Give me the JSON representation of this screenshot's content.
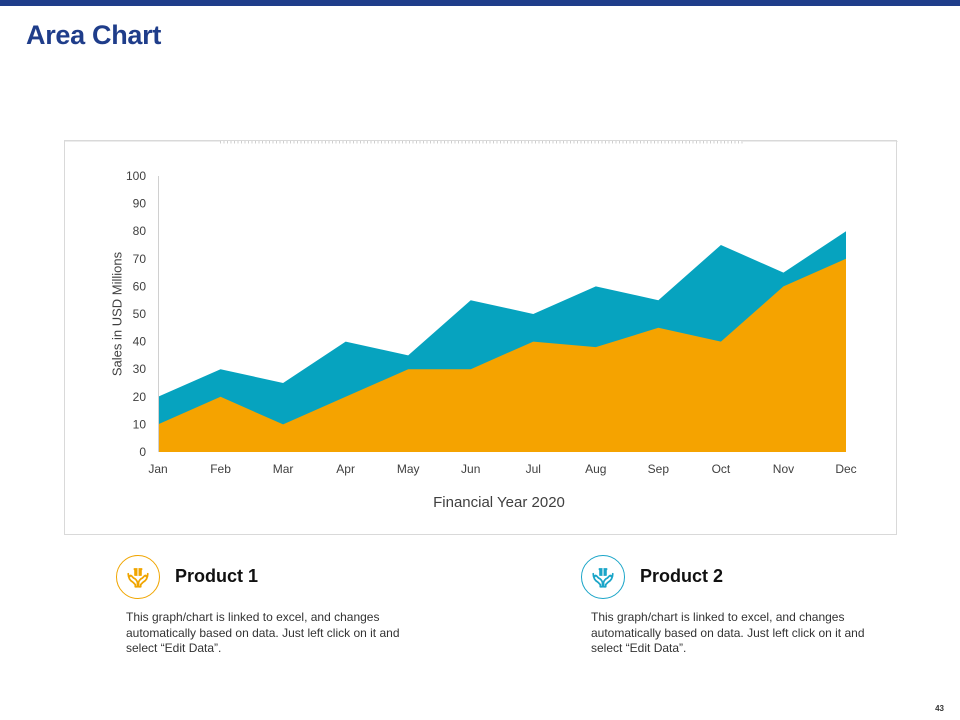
{
  "page": {
    "title": "Area Chart",
    "page_number": "43",
    "accent_color": "#1f3d8a"
  },
  "chart_data": {
    "type": "area",
    "categories": [
      "Jan",
      "Feb",
      "Mar",
      "Apr",
      "May",
      "Jun",
      "Jul",
      "Aug",
      "Sep",
      "Oct",
      "Nov",
      "Dec"
    ],
    "series": [
      {
        "name": "Product 1",
        "color": "#f5a300",
        "values": [
          10,
          20,
          10,
          20,
          30,
          30,
          40,
          38,
          45,
          40,
          60,
          70
        ]
      },
      {
        "name": "Product 2",
        "color": "#06a3bf",
        "values": [
          20,
          30,
          25,
          40,
          35,
          55,
          50,
          60,
          55,
          75,
          65,
          80
        ]
      }
    ],
    "xlabel": "Financial Year 2020",
    "ylabel": "Sales in USD Millions",
    "ylim": [
      0,
      100
    ],
    "yticks": [
      0,
      10,
      20,
      30,
      40,
      50,
      60,
      70,
      80,
      90,
      100
    ]
  },
  "products": [
    {
      "title": "Product 1",
      "icon": "hands-gift-icon",
      "color": "#f0a500",
      "description": "This graph/chart is linked to excel, and changes automatically based on data. Just left click on it and select “Edit Data”."
    },
    {
      "title": "Product 2",
      "icon": "hands-gift-icon",
      "color": "#1aa5c8",
      "description": "This graph/chart is linked to excel, and changes automatically based on data. Just left click on it and select “Edit Data”."
    }
  ]
}
